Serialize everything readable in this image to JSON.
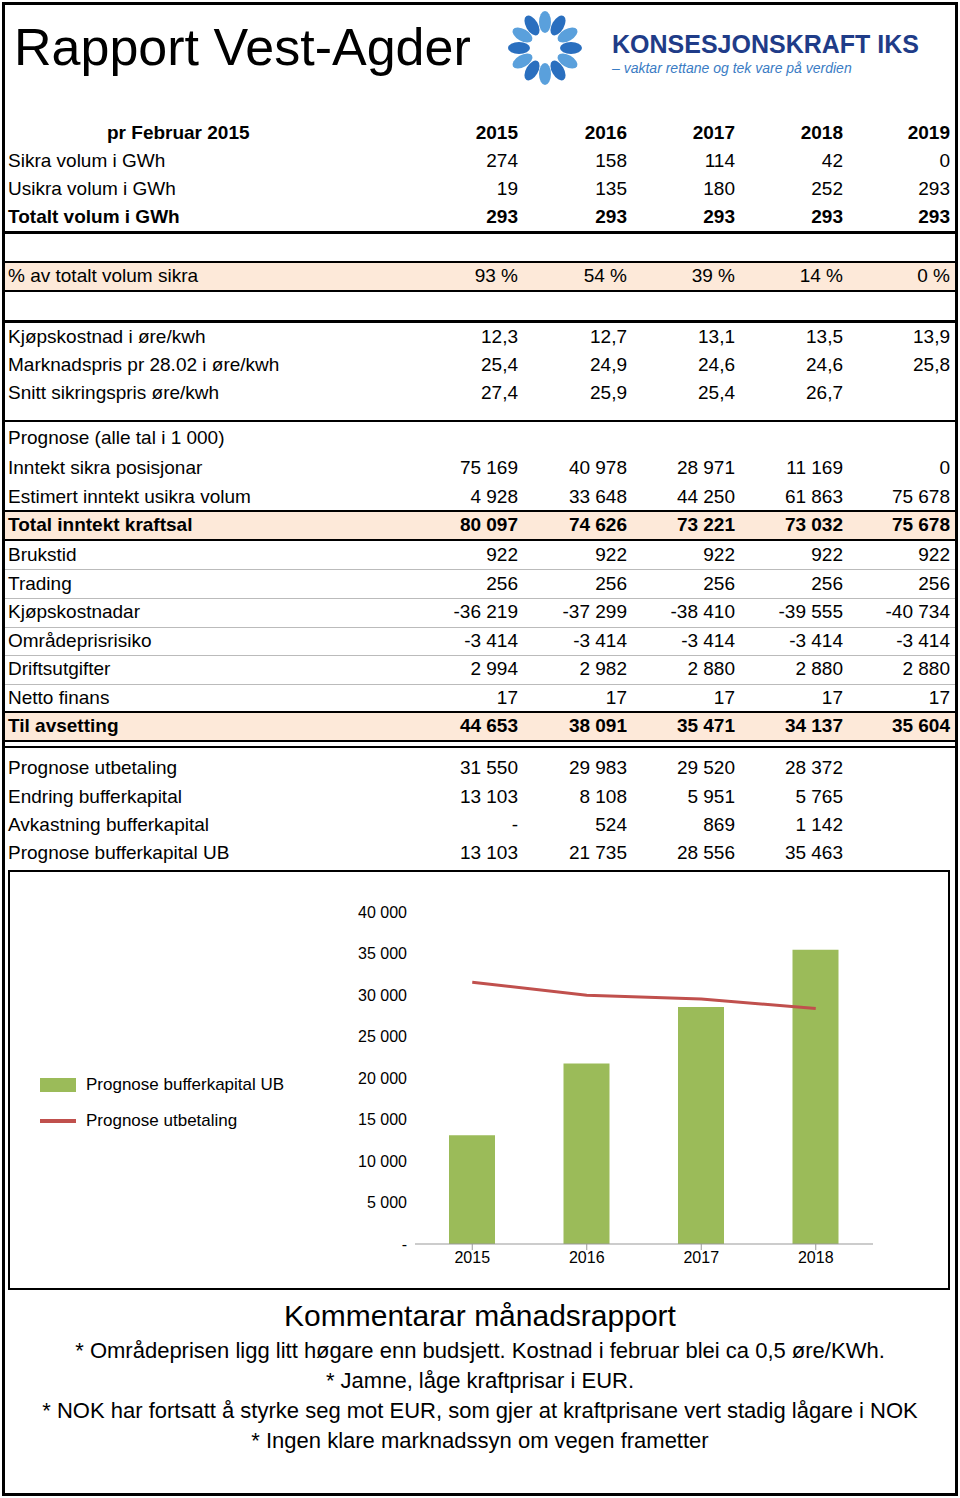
{
  "header": {
    "title": "Rapport Vest-Agder",
    "logo_name": "KONSESJONSKRAFT IKS",
    "logo_tagline": "– vaktar rettane og tek vare på verdien"
  },
  "table": {
    "rows": [
      [
        "pr Februar 2015",
        "2015",
        "2016",
        "2017",
        "2018",
        "2019"
      ],
      [
        "Sikra volum i GWh",
        "274",
        "158",
        "114",
        "42",
        "0"
      ],
      [
        "Usikra volum i GWh",
        "19",
        "135",
        "180",
        "252",
        "293"
      ],
      [
        "Totalt volum i GWh",
        "293",
        "293",
        "293",
        "293",
        "293"
      ],
      [
        "% av totalt volum sikra",
        "93 %",
        "54 %",
        "39 %",
        "14 %",
        "0 %"
      ],
      [
        "Kjøpskostnad i øre/kwh",
        "12,3",
        "12,7",
        "13,1",
        "13,5",
        "13,9"
      ],
      [
        "Marknadspris pr 28.02 i øre/kwh",
        "25,4",
        "24,9",
        "24,6",
        "24,6",
        "25,8"
      ],
      [
        "Snitt sikringspris øre/kwh",
        "27,4",
        "25,9",
        "25,4",
        "26,7",
        null
      ],
      [
        "Prognose (alle tal i 1 000)"
      ],
      [
        "Inntekt sikra posisjonar",
        "75 169",
        "40 978",
        "28 971",
        "11 169",
        "0"
      ],
      [
        "Estimert inntekt usikra volum",
        "4 928",
        "33 648",
        "44 250",
        "61 863",
        "75 678"
      ],
      [
        "Total inntekt kraftsal",
        "80 097",
        "74 626",
        "73 221",
        "73 032",
        "75 678"
      ],
      [
        "Brukstid",
        "922",
        "922",
        "922",
        "922",
        "922"
      ],
      [
        "Trading",
        "256",
        "256",
        "256",
        "256",
        "256"
      ],
      [
        "Kjøpskostnadar",
        "-36 219",
        "-37 299",
        "-38 410",
        "-39 555",
        "-40 734"
      ],
      [
        "Områdeprisrisiko",
        "-3 414",
        "-3 414",
        "-3 414",
        "-3 414",
        "-3 414"
      ],
      [
        "Driftsutgifter",
        "2 994",
        "2 982",
        "2 880",
        "2 880",
        "2 880"
      ],
      [
        "Netto finans",
        "17",
        "17",
        "17",
        "17",
        "17"
      ],
      [
        "Til avsetting",
        "44 653",
        "38 091",
        "35 471",
        "34 137",
        "35 604"
      ],
      [
        "Prognose utbetaling",
        "31 550",
        "29 983",
        "29 520",
        "28 372",
        null
      ],
      [
        "Endring bufferkapital",
        "13 103",
        "8 108",
        "5 951",
        "5 765",
        null
      ],
      [
        "Avkastning bufferkapital",
        "-",
        "524",
        "869",
        "1 142",
        null
      ],
      [
        "Prognose bufferkapital UB",
        "13 103",
        "21 735",
        "28 556",
        "35 463",
        null
      ]
    ]
  },
  "chart_data": {
    "type": "bar",
    "categories": [
      "2015",
      "2016",
      "2017",
      "2018"
    ],
    "series": [
      {
        "name": "Prognose bufferkapital UB",
        "type": "bar",
        "color": "#9bbb59",
        "values": [
          13103,
          21735,
          28556,
          35463
        ]
      },
      {
        "name": "Prognose utbetaling",
        "type": "line",
        "color": "#c0504d",
        "values": [
          31550,
          29983,
          29520,
          28372
        ]
      }
    ],
    "ylim": [
      0,
      40000
    ],
    "yticks": [
      {
        "value": 0,
        "label": "-"
      },
      {
        "value": 5000,
        "label": "5 000"
      },
      {
        "value": 10000,
        "label": "10 000"
      },
      {
        "value": 15000,
        "label": "15 000"
      },
      {
        "value": 20000,
        "label": "20 000"
      },
      {
        "value": 25000,
        "label": "25 000"
      },
      {
        "value": 30000,
        "label": "30 000"
      },
      {
        "value": 35000,
        "label": "35 000"
      },
      {
        "value": 40000,
        "label": "40 000"
      }
    ],
    "grid": false,
    "legend": "left"
  },
  "comments": {
    "title": "Kommentarar månadsrapport",
    "lines": [
      "* Områdeprisen ligg litt høgare enn budsjett. Kostnad i februar blei ca 0,5 øre/KWh.",
      "* Jamne, låge kraftprisar i EUR.",
      "* NOK har fortsatt å styrke seg mot EUR, som gjer at kraftprisane vert stadig lågare i NOK",
      "* Ingen klare marknadssyn om vegen frametter"
    ]
  }
}
